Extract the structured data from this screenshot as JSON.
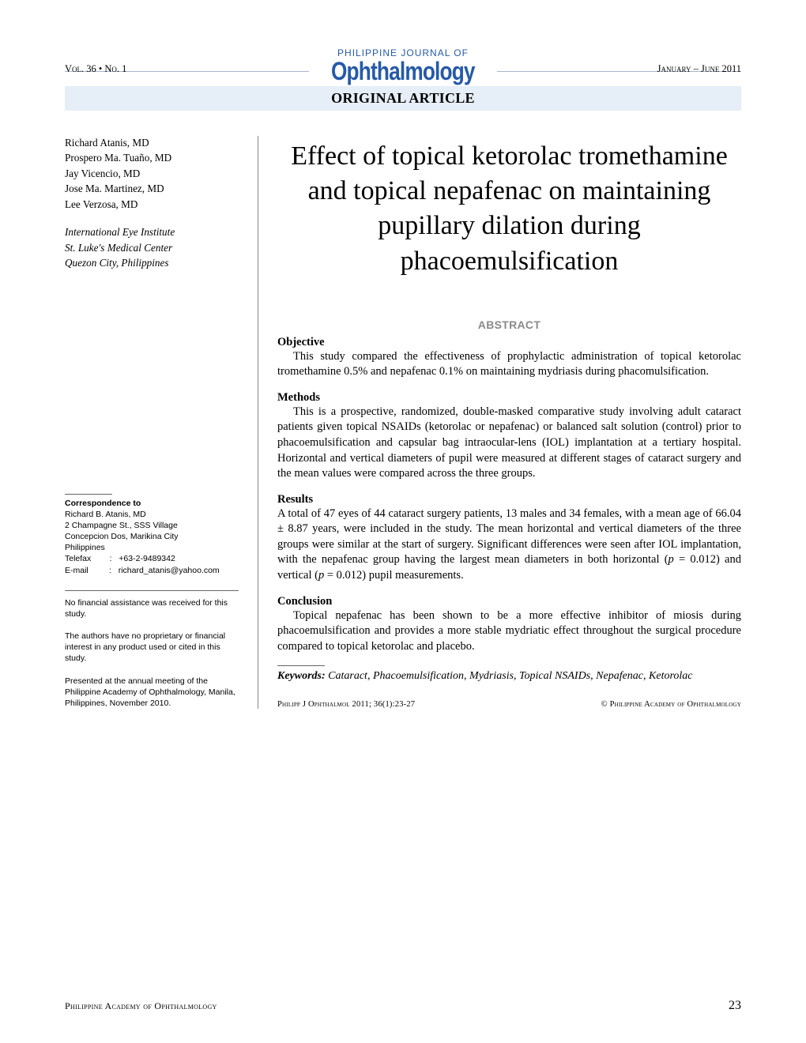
{
  "masthead": {
    "journal_of": "PHILIPPINE JOURNAL OF",
    "journal_name": "Ophthalmology",
    "volume_issue": "Vol. 36 • No. 1",
    "date_range": "January – June 2011",
    "article_type": "ORIGINAL ARTICLE",
    "colors": {
      "brand_blue": "#265aa8",
      "banner_bg": "#e6eef7",
      "rule_gray": "#aab6ce",
      "abstract_gray": "#8a8a8a"
    }
  },
  "authors": [
    "Richard Atanis, MD",
    "Prospero Ma. Tuaño, MD",
    "Jay Vicencio, MD",
    "Jose Ma. Martinez, MD",
    "Lee Verzosa, MD"
  ],
  "affiliation": [
    "International Eye Institute",
    "St. Luke's Medical Center",
    "Quezon City, Philippines"
  ],
  "correspondence": {
    "label": "Correspondence to",
    "name": "Richard B. Atanis, MD",
    "addr1": "2 Champagne St., SSS Village",
    "addr2": "Concepcion Dos, Marikina City",
    "addr3": "Philippines",
    "telefax_label": "Telefax",
    "telefax": "+63-2-9489342",
    "email_label": "E-mail",
    "email": "richard_atanis@yahoo.com"
  },
  "disclaimers": [
    "No financial assistance was received for this study.",
    "The authors have no proprietary or financial interest in any product used or cited in this study.",
    "Presented at the annual meeting of the Philippine Academy of Ophthalmology, Manila, Philippines, November 2010."
  ],
  "article": {
    "title": "Effect of topical ketorolac tromethamine and topical nepafenac on maintaining pupillary dilation during phacoemulsification",
    "abstract_label": "ABSTRACT",
    "sections": {
      "objective": {
        "head": "Objective",
        "body": "This study compared the effectiveness of prophylactic administration of topical ketorolac tromethamine 0.5% and nepafenac 0.1% on maintaining mydriasis during phacomulsification."
      },
      "methods": {
        "head": "Methods",
        "body": "This is a prospective, randomized, double-masked comparative study involving adult cataract patients given topical NSAIDs (ketorolac or nepafenac) or balanced salt solution (control) prior to phacoemulsification and capsular bag intraocular-lens (IOL) implantation at a tertiary hospital. Horizontal and vertical diameters of pupil were measured at different stages of cataract surgery and the mean values were compared across the three groups."
      },
      "results": {
        "head": "Results",
        "body_pre": "A total of 47 eyes of 44 cataract surgery patients, 13 males and 34 females, with a mean age of 66.04 ± 8.87 years, were included in the study. The mean horizontal and vertical diameters of the three groups were similar at the start of surgery. Significant differences were seen after IOL implantation, with the nepafenac group having the largest mean diameters in both horizontal (",
        "p1": "p",
        "p1val": " = 0.012) and vertical (",
        "p2": "p",
        "p2val": " = 0.012) pupil measurements."
      },
      "conclusion": {
        "head": "Conclusion",
        "body": "Topical nepafenac has been shown to be a more effective inhibitor of miosis during phacoemulsification and provides a more stable mydriatic effect throughout the surgical procedure compared to topical ketorolac and placebo."
      }
    },
    "keywords_label": "Keywords:",
    "keywords": " Cataract, Phacoemulsification, Mydriasis, Topical NSAIDs, Nepafenac, Ketorolac",
    "citation": "Philipp J Ophthalmol 2011; 36(1):23-27",
    "copyright": "© Philippine Academy of Ophthalmology"
  },
  "footer": {
    "left": "Philippine Academy of Ophthalmology",
    "page": "23"
  }
}
